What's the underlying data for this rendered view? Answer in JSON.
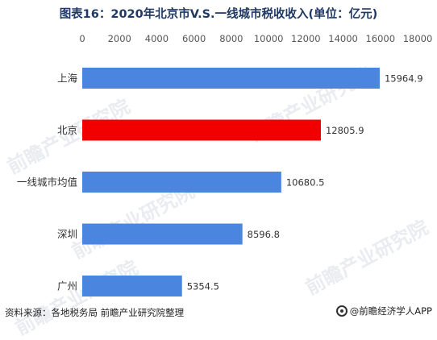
{
  "chart_data": {
    "type": "bar",
    "orientation": "horizontal",
    "title": "图表16：2020年北京市V.S.一线城市税收收入(单位：亿元)",
    "categories": [
      "上海",
      "北京",
      "一线城市均值",
      "深圳",
      "广州"
    ],
    "values": [
      15964.9,
      12805.9,
      10680.5,
      8596.8,
      5354.5
    ],
    "value_labels": [
      "15964.9",
      "12805.9",
      "10680.5",
      "8596.8",
      "5354.5"
    ],
    "highlight_category": "北京",
    "xlim": [
      0,
      18000
    ],
    "xticks": [
      0,
      2000,
      4000,
      6000,
      8000,
      10000,
      12000,
      14000,
      16000,
      18000
    ],
    "grid": false,
    "xaxis_position": "top",
    "colors": {
      "default": "#4a86e0",
      "highlight": "#f20000"
    }
  },
  "footer": {
    "source": "资料来源：各地税务局 前瞻产业研究院整理",
    "brand": "@前瞻经济学人APP",
    "brand_icon": "circle-logo-icon"
  },
  "watermark": "前瞻产业研究院"
}
